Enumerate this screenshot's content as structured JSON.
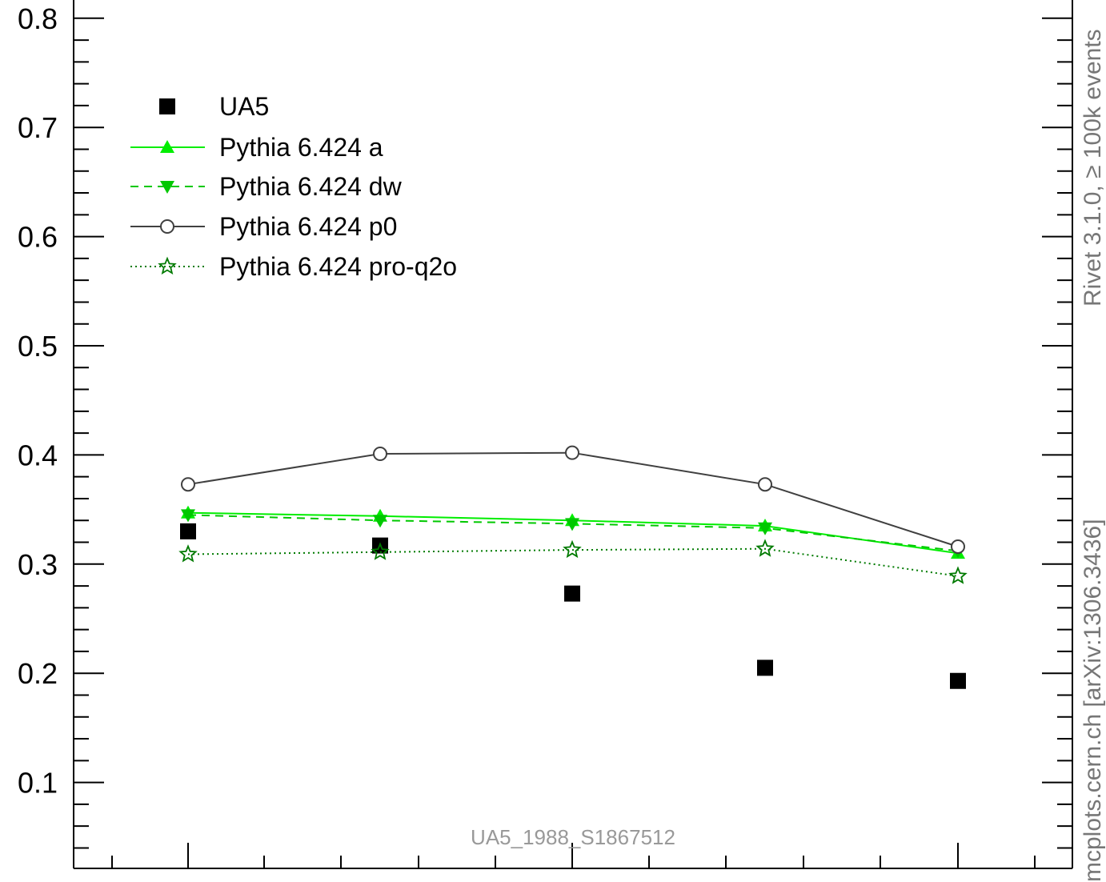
{
  "chart_data": {
    "type": "line",
    "title": "",
    "xlabel": "",
    "ylabel": "",
    "ylim": [
      0,
      0.82
    ],
    "y_ticks": [
      "0.1",
      "0.2",
      "0.3",
      "0.4",
      "0.5",
      "0.6",
      "0.7",
      "0.8"
    ],
    "x": [
      1,
      2,
      3,
      4,
      5
    ],
    "grid": false,
    "legend_position": "top-left",
    "series": [
      {
        "name": "UA5",
        "style": "markers",
        "marker": "square",
        "color": "#000000",
        "values": [
          0.33,
          0.317,
          0.273,
          0.205,
          0.193
        ]
      },
      {
        "name": "Pythia 6.424 a",
        "style": "solid",
        "marker": "triangle-up",
        "color": "#00ee00",
        "values": [
          0.347,
          0.344,
          0.34,
          0.335,
          0.31
        ]
      },
      {
        "name": "Pythia 6.424 dw",
        "style": "dashed",
        "marker": "triangle-down",
        "color": "#00c800",
        "values": [
          0.345,
          0.34,
          0.337,
          0.333,
          0.312
        ]
      },
      {
        "name": "Pythia 6.424 p0",
        "style": "solid",
        "marker": "circle-open",
        "color": "#404040",
        "values": [
          0.373,
          0.401,
          0.402,
          0.373,
          0.316
        ]
      },
      {
        "name": "Pythia 6.424 pro-q2o",
        "style": "dotted",
        "marker": "star-open",
        "color": "#007a00",
        "values": [
          0.309,
          0.311,
          0.313,
          0.314,
          0.289
        ]
      }
    ]
  },
  "side_text_top": "Rivet 3.1.0, ≥ 100k events",
  "side_text_bottom": "mcplots.cern.ch [arXiv:1306.3436]",
  "watermark": "UA5_1988_S1867512"
}
